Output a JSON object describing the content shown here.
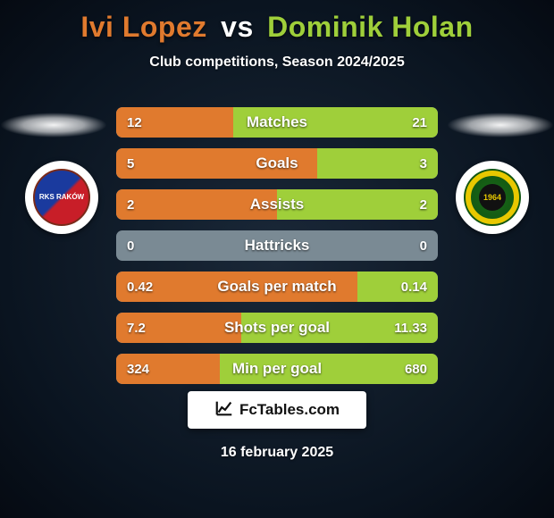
{
  "title": {
    "player1": "Ivi Lopez",
    "vs": "vs",
    "player2": "Dominik Holan",
    "player1_color": "#e07a2e",
    "player2_color": "#9fcf3a"
  },
  "subtitle": "Club competitions, Season 2024/2025",
  "brand": "FcTables.com",
  "date": "16 february 2025",
  "crest_left_label": "RKS RAKÓW",
  "crest_right_label": "1964",
  "crest_right_top": "KS KATOWICE",
  "colors": {
    "left_bar": "#e07a2e",
    "right_bar": "#9fcf3a",
    "neutral_bar": "#7a8a94"
  },
  "stats": [
    {
      "label": "Matches",
      "left_val": "12",
      "right_val": "21",
      "left_pct": 36.4,
      "right_pct": 63.6
    },
    {
      "label": "Goals",
      "left_val": "5",
      "right_val": "3",
      "left_pct": 62.5,
      "right_pct": 37.5
    },
    {
      "label": "Assists",
      "left_val": "2",
      "right_val": "2",
      "left_pct": 50.0,
      "right_pct": 50.0
    },
    {
      "label": "Hattricks",
      "left_val": "0",
      "right_val": "0",
      "left_pct": 0.0,
      "right_pct": 0.0
    },
    {
      "label": "Goals per match",
      "left_val": "0.42",
      "right_val": "0.14",
      "left_pct": 75.0,
      "right_pct": 25.0
    },
    {
      "label": "Shots per goal",
      "left_val": "7.2",
      "right_val": "11.33",
      "left_pct": 38.9,
      "right_pct": 61.1
    },
    {
      "label": "Min per goal",
      "left_val": "324",
      "right_val": "680",
      "left_pct": 32.3,
      "right_pct": 67.7
    }
  ]
}
